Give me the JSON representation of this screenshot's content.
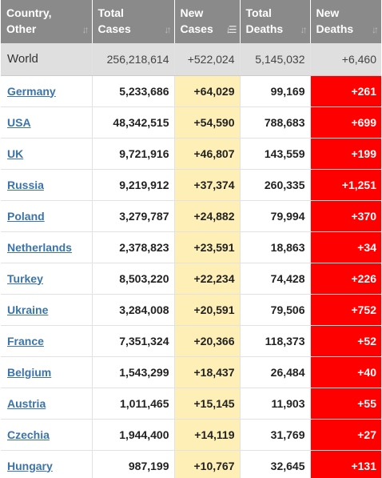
{
  "headers": [
    {
      "line1": "Country,",
      "line2": "Other"
    },
    {
      "line1": "Total",
      "line2": "Cases"
    },
    {
      "line1": "New",
      "line2": "Cases"
    },
    {
      "line1": "Total",
      "line2": "Deaths"
    },
    {
      "line1": "New",
      "line2": "Deaths"
    }
  ],
  "world": {
    "name": "World",
    "total_cases": "256,218,614",
    "new_cases": "+522,024",
    "total_deaths": "5,145,032",
    "new_deaths": "+6,460"
  },
  "rows": [
    {
      "country": "Germany",
      "total_cases": "5,233,686",
      "new_cases": "+64,029",
      "total_deaths": "99,169",
      "new_deaths": "+261"
    },
    {
      "country": "USA",
      "total_cases": "48,342,515",
      "new_cases": "+54,590",
      "total_deaths": "788,683",
      "new_deaths": "+699"
    },
    {
      "country": "UK",
      "total_cases": "9,721,916",
      "new_cases": "+46,807",
      "total_deaths": "143,559",
      "new_deaths": "+199"
    },
    {
      "country": "Russia",
      "total_cases": "9,219,912",
      "new_cases": "+37,374",
      "total_deaths": "260,335",
      "new_deaths": "+1,251"
    },
    {
      "country": "Poland",
      "total_cases": "3,279,787",
      "new_cases": "+24,882",
      "total_deaths": "79,994",
      "new_deaths": "+370"
    },
    {
      "country": "Netherlands",
      "total_cases": "2,378,823",
      "new_cases": "+23,591",
      "total_deaths": "18,863",
      "new_deaths": "+34"
    },
    {
      "country": "Turkey",
      "total_cases": "8,503,220",
      "new_cases": "+22,234",
      "total_deaths": "74,428",
      "new_deaths": "+226"
    },
    {
      "country": "Ukraine",
      "total_cases": "3,284,008",
      "new_cases": "+20,591",
      "total_deaths": "79,506",
      "new_deaths": "+752"
    },
    {
      "country": "France",
      "total_cases": "7,351,324",
      "new_cases": "+20,366",
      "total_deaths": "118,373",
      "new_deaths": "+52"
    },
    {
      "country": "Belgium",
      "total_cases": "1,543,299",
      "new_cases": "+18,437",
      "total_deaths": "26,484",
      "new_deaths": "+40"
    },
    {
      "country": "Austria",
      "total_cases": "1,011,465",
      "new_cases": "+15,145",
      "total_deaths": "11,903",
      "new_deaths": "+55"
    },
    {
      "country": "Czechia",
      "total_cases": "1,944,400",
      "new_cases": "+14,119",
      "total_deaths": "31,769",
      "new_deaths": "+27"
    },
    {
      "country": "Hungary",
      "total_cases": "987,199",
      "new_cases": "+10,767",
      "total_deaths": "32,645",
      "new_deaths": "+131"
    }
  ],
  "colors": {
    "header_bg": "#8a8a8a",
    "world_row_bg": "#dfdfdf",
    "new_cases_bg": "#fdefb6",
    "new_deaths_bg": "#ff0000",
    "link": "#3b74a8"
  },
  "icons": {
    "sort": "sort-arrows-icon",
    "sort_active": "sort-descending-icon"
  }
}
